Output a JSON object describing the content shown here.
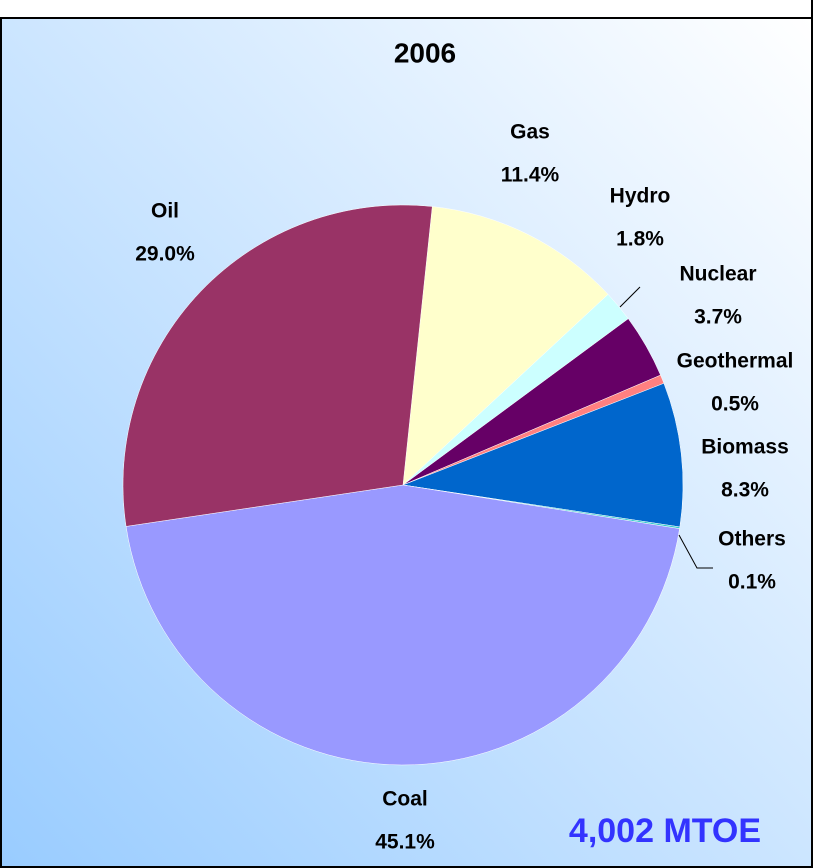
{
  "chart_data": {
    "type": "pie",
    "title": "2006",
    "categories": [
      "Gas",
      "Hydro",
      "Nuclear",
      "Geothermal",
      "Biomass",
      "Others",
      "Coal",
      "Oil"
    ],
    "values": [
      11.4,
      1.8,
      3.7,
      0.5,
      8.3,
      0.1,
      45.1,
      29.0
    ],
    "value_labels": [
      "11.4%",
      "1.8%",
      "3.7%",
      "0.5%",
      "8.3%",
      "0.1%",
      "45.1%",
      "29.0%"
    ],
    "colors": [
      "#ffffcc",
      "#ccffff",
      "#660066",
      "#ff8080",
      "#0066cc",
      "#33cccc",
      "#9999ff",
      "#993366"
    ],
    "annotation": "4,002 MTOE"
  }
}
